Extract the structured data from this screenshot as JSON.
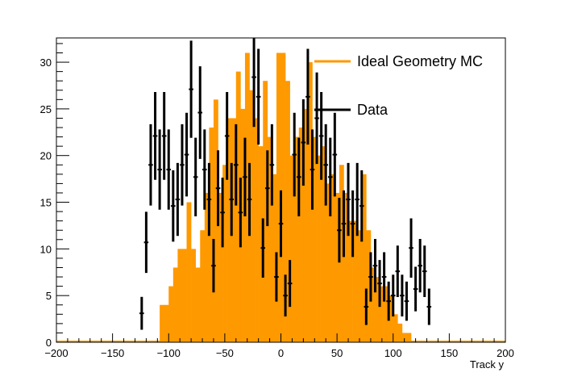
{
  "chart_data": {
    "type": "bar",
    "xlabel": "Track y",
    "ylabel": "",
    "xlim": [
      -200,
      200
    ],
    "ylim": [
      0,
      32.6
    ],
    "x_ticks": [
      -200,
      -150,
      -100,
      -50,
      0,
      50,
      100,
      150,
      200
    ],
    "y_ticks": [
      0,
      5,
      10,
      15,
      20,
      25,
      30
    ],
    "bin_width": 4,
    "legend_position": "top-right",
    "colors": {
      "mc": "#ff9900",
      "data": "#000000"
    },
    "series": [
      {
        "name": "Ideal Geometry MC",
        "style": "filled-histogram",
        "bin_centers": [
          -106,
          -102,
          -98,
          -94,
          -90,
          -86,
          -82,
          -78,
          -74,
          -70,
          -66,
          -62,
          -58,
          -54,
          -50,
          -46,
          -42,
          -38,
          -34,
          -30,
          -26,
          -22,
          -18,
          -14,
          -10,
          -6,
          -2,
          2,
          6,
          10,
          14,
          18,
          22,
          26,
          30,
          34,
          38,
          42,
          46,
          50,
          54,
          58,
          62,
          66,
          70,
          74,
          78,
          82,
          86,
          90,
          94,
          98,
          102,
          106,
          110,
          114
        ],
        "values": [
          4,
          4,
          6,
          8,
          10,
          10,
          15,
          10,
          8,
          12,
          16,
          23,
          26,
          16,
          19,
          24,
          24,
          29,
          25,
          31,
          27,
          24,
          21,
          28,
          22,
          18,
          31,
          31,
          28,
          20,
          22,
          23,
          25,
          30,
          22,
          20,
          21,
          17,
          18,
          16,
          19,
          16,
          13,
          13,
          12,
          18,
          12,
          8,
          7,
          6,
          6,
          5,
          3,
          2,
          1,
          1
        ]
      },
      {
        "name": "Data",
        "style": "points-with-errors",
        "points": [
          {
            "x": -124,
            "y": 3.1
          },
          {
            "x": -120,
            "y": 10.7
          },
          {
            "x": -116,
            "y": 19.0
          },
          {
            "x": -112,
            "y": 22.1
          },
          {
            "x": -108,
            "y": 18.5
          },
          {
            "x": -104,
            "y": 22.1
          },
          {
            "x": -100,
            "y": 18.5
          },
          {
            "x": -96,
            "y": 14.6
          },
          {
            "x": -92,
            "y": 15.3
          },
          {
            "x": -88,
            "y": 19.0
          },
          {
            "x": -84,
            "y": 20.1
          },
          {
            "x": -80,
            "y": 27.1
          },
          {
            "x": -76,
            "y": 17.7
          },
          {
            "x": -72,
            "y": 24.6
          },
          {
            "x": -68,
            "y": 18.5
          },
          {
            "x": -64,
            "y": 15.3
          },
          {
            "x": -60,
            "y": 8.2
          },
          {
            "x": -56,
            "y": 16.5
          },
          {
            "x": -52,
            "y": 13.9
          },
          {
            "x": -48,
            "y": 22.1
          },
          {
            "x": -44,
            "y": 15.3
          },
          {
            "x": -40,
            "y": 19.0
          },
          {
            "x": -36,
            "y": 13.9
          },
          {
            "x": -32,
            "y": 17.7
          },
          {
            "x": -28,
            "y": 15.3
          },
          {
            "x": -24,
            "y": 28.4
          },
          {
            "x": -20,
            "y": 26.3
          },
          {
            "x": -16,
            "y": 10.1
          },
          {
            "x": -12,
            "y": 16.5
          },
          {
            "x": -8,
            "y": 19.0
          },
          {
            "x": -4,
            "y": 7.0
          },
          {
            "x": 0,
            "y": 12.7
          },
          {
            "x": 4,
            "y": 5.0
          },
          {
            "x": 8,
            "y": 6.3
          },
          {
            "x": 12,
            "y": 20.1
          },
          {
            "x": 16,
            "y": 17.7
          },
          {
            "x": 20,
            "y": 21.4
          },
          {
            "x": 24,
            "y": 26.3
          },
          {
            "x": 28,
            "y": 18.5
          },
          {
            "x": 32,
            "y": 24.0
          },
          {
            "x": 36,
            "y": 22.1
          },
          {
            "x": 40,
            "y": 19.0
          },
          {
            "x": 44,
            "y": 17.7
          },
          {
            "x": 48,
            "y": 20.1
          },
          {
            "x": 52,
            "y": 12.0
          },
          {
            "x": 56,
            "y": 12.7
          },
          {
            "x": 60,
            "y": 15.3
          },
          {
            "x": 64,
            "y": 12.7
          },
          {
            "x": 68,
            "y": 15.3
          },
          {
            "x": 72,
            "y": 14.6
          },
          {
            "x": 76,
            "y": 3.8
          },
          {
            "x": 80,
            "y": 7.0
          },
          {
            "x": 84,
            "y": 8.2
          },
          {
            "x": 88,
            "y": 6.3
          },
          {
            "x": 92,
            "y": 7.0
          },
          {
            "x": 96,
            "y": 4.4
          },
          {
            "x": 100,
            "y": 5.0
          },
          {
            "x": 104,
            "y": 7.6
          },
          {
            "x": 108,
            "y": 5.0
          },
          {
            "x": 112,
            "y": 4.4
          },
          {
            "x": 116,
            "y": 10.1
          },
          {
            "x": 120,
            "y": 5.7
          },
          {
            "x": 124,
            "y": 8.2
          },
          {
            "x": 128,
            "y": 7.6
          },
          {
            "x": 132,
            "y": 3.8
          }
        ]
      }
    ]
  }
}
